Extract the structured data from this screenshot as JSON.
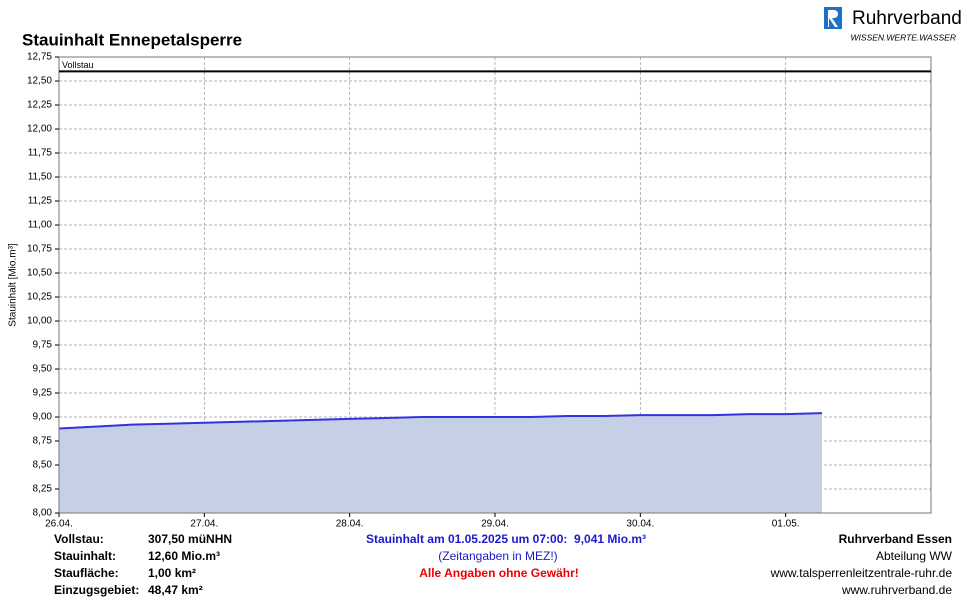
{
  "chart_data": {
    "type": "line",
    "title": "Stauinhalt Ennepetalsperre",
    "y_label": "Stauinhalt [Mio.m³]",
    "categories": [
      "26.04.",
      null,
      null,
      null,
      "27.04.",
      null,
      null,
      null,
      "28.04.",
      null,
      null,
      null,
      "29.04.",
      null,
      null,
      null,
      "30.04.",
      null,
      null,
      null,
      "01.05.",
      null,
      null,
      null
    ],
    "values": [
      8.88,
      8.9,
      8.92,
      8.93,
      8.94,
      8.95,
      8.96,
      8.97,
      8.98,
      8.99,
      9.0,
      9.0,
      9.0,
      9.0,
      9.01,
      9.01,
      9.02,
      9.02,
      9.02,
      9.03,
      9.03,
      9.041,
      null,
      null
    ],
    "color": "#3333dd",
    "area_color": "#c5d0e6",
    "ylim": [
      8,
      12.75
    ],
    "yticks": [
      {
        "value": 8,
        "label": "8,00"
      },
      {
        "value": 8.25,
        "label": "8,25"
      },
      {
        "value": 8.5,
        "label": "8,50"
      },
      {
        "value": 8.75,
        "label": "8,75"
      },
      {
        "value": 9,
        "label": "9,00"
      },
      {
        "value": 9.25,
        "label": "9,25"
      },
      {
        "value": 9.5,
        "label": "9,50"
      },
      {
        "value": 9.75,
        "label": "9,75"
      },
      {
        "value": 10,
        "label": "10,00"
      },
      {
        "value": 10.25,
        "label": "10,25"
      },
      {
        "value": 10.5,
        "label": "10,50"
      },
      {
        "value": 10.75,
        "label": "10,75"
      },
      {
        "value": 11,
        "label": "11,00"
      },
      {
        "value": 11.25,
        "label": "11,25"
      },
      {
        "value": 11.5,
        "label": "11,50"
      },
      {
        "value": 11.75,
        "label": "11,75"
      },
      {
        "value": 12,
        "label": "12,00"
      },
      {
        "value": 12.25,
        "label": "12,25"
      },
      {
        "value": 12.5,
        "label": "12,50"
      },
      {
        "value": 12.75,
        "label": "12,75"
      }
    ],
    "grid": true,
    "reference_line": {
      "label": "Vollstau",
      "value": 12.6
    }
  },
  "logo": {
    "name": "Ruhrverband",
    "tagline": "WISSEN.WERTE.WASSER"
  },
  "footer": {
    "facts": [
      [
        "Vollstau:",
        "307,50 müNHN"
      ],
      [
        "Stauinhalt:",
        "12,60 Mio.m³"
      ],
      [
        "Staufläche:",
        "1,00 km²"
      ],
      [
        "Einzugsgebiet:",
        "48,47 km²"
      ]
    ],
    "status": "Stauinhalt am 01.05.2025 um 07:00:  9,041 Mio.m³",
    "timezone_note": "(Zeitangaben in MEZ!)",
    "disclaimer": "Alle Angaben ohne Gewähr!",
    "contact": [
      "Ruhrverband Essen",
      "Abteilung WW",
      "www.talsperrenleitzentrale-ruhr.de",
      "www.ruhrverband.de"
    ]
  }
}
